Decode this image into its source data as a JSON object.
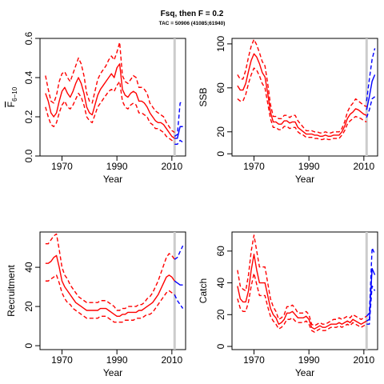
{
  "figure": {
    "title": "Fsq, then F = 0.2",
    "subtitle": "TAC = 50906 (41085;61940)"
  },
  "colors": {
    "history": "#ff0000",
    "forecast": "#0000ff",
    "marker": "#cccccc",
    "axis": "#000000"
  },
  "chart_data": [
    {
      "type": "line",
      "panel": "top-left",
      "xlabel": "Year",
      "ylabel_main": "F",
      "ylabel_sub": "6−10",
      "xlim": [
        1962,
        2015
      ],
      "ylim": [
        0,
        0.6
      ],
      "xticks": [
        1970,
        1990,
        2010
      ],
      "yticks": [
        0.0,
        0.2,
        0.4,
        0.6
      ],
      "ytick_labels": [
        "0.0",
        "0.2",
        "0.4",
        "0.6"
      ],
      "marker_year": 2011,
      "history": {
        "x": [
          1964,
          1965,
          1966,
          1967,
          1968,
          1969,
          1970,
          1971,
          1972,
          1973,
          1974,
          1975,
          1976,
          1977,
          1978,
          1979,
          1980,
          1981,
          1982,
          1983,
          1984,
          1985,
          1986,
          1987,
          1988,
          1989,
          1990,
          1991,
          1992,
          1993,
          1994,
          1995,
          1996,
          1997,
          1998,
          1999,
          2000,
          2001,
          2002,
          2003,
          2004,
          2005,
          2006,
          2007,
          2008,
          2009,
          2010,
          2011
        ],
        "mid": [
          0.32,
          0.28,
          0.22,
          0.2,
          0.22,
          0.28,
          0.33,
          0.35,
          0.32,
          0.3,
          0.33,
          0.37,
          0.4,
          0.37,
          0.32,
          0.25,
          0.22,
          0.21,
          0.26,
          0.31,
          0.34,
          0.36,
          0.38,
          0.4,
          0.42,
          0.4,
          0.45,
          0.47,
          0.34,
          0.31,
          0.3,
          0.32,
          0.33,
          0.32,
          0.28,
          0.28,
          0.27,
          0.25,
          0.22,
          0.2,
          0.18,
          0.17,
          0.17,
          0.16,
          0.14,
          0.12,
          0.1,
          0.09
        ],
        "upper": [
          0.41,
          0.34,
          0.28,
          0.27,
          0.31,
          0.38,
          0.42,
          0.43,
          0.4,
          0.38,
          0.42,
          0.46,
          0.5,
          0.47,
          0.41,
          0.32,
          0.28,
          0.27,
          0.33,
          0.39,
          0.42,
          0.44,
          0.46,
          0.49,
          0.51,
          0.49,
          0.53,
          0.58,
          0.41,
          0.38,
          0.37,
          0.39,
          0.41,
          0.4,
          0.35,
          0.35,
          0.34,
          0.32,
          0.27,
          0.25,
          0.23,
          0.22,
          0.21,
          0.2,
          0.17,
          0.15,
          0.13,
          0.12
        ],
        "lower": [
          0.25,
          0.2,
          0.16,
          0.15,
          0.17,
          0.22,
          0.26,
          0.28,
          0.25,
          0.24,
          0.26,
          0.29,
          0.32,
          0.3,
          0.26,
          0.2,
          0.18,
          0.17,
          0.21,
          0.25,
          0.27,
          0.29,
          0.31,
          0.33,
          0.34,
          0.33,
          0.36,
          0.38,
          0.28,
          0.25,
          0.24,
          0.26,
          0.27,
          0.26,
          0.22,
          0.22,
          0.21,
          0.2,
          0.17,
          0.16,
          0.14,
          0.14,
          0.13,
          0.12,
          0.1,
          0.09,
          0.08,
          0.07
        ]
      },
      "forecast": {
        "x": [
          2011,
          2012,
          2013,
          2014
        ],
        "mid": [
          0.09,
          0.09,
          0.15,
          0.15
        ],
        "upper": [
          0.1,
          0.11,
          0.27,
          0.28
        ],
        "lower": [
          0.06,
          0.06,
          0.08,
          0.07
        ]
      }
    },
    {
      "type": "line",
      "panel": "top-right",
      "xlabel": "Year",
      "ylabel_main": "SSB",
      "ylabel_sub": "",
      "xlim": [
        1962,
        2015
      ],
      "ylim": [
        -2,
        105
      ],
      "xticks": [
        1970,
        1990,
        2010
      ],
      "yticks": [
        0,
        20,
        60,
        100
      ],
      "ytick_labels": [
        "0",
        "20",
        "60",
        "100"
      ],
      "marker_year": 2011,
      "history": {
        "x": [
          1964,
          1965,
          1966,
          1967,
          1968,
          1969,
          1970,
          1971,
          1972,
          1973,
          1974,
          1975,
          1976,
          1977,
          1978,
          1979,
          1980,
          1981,
          1982,
          1983,
          1984,
          1985,
          1986,
          1987,
          1988,
          1989,
          1990,
          1991,
          1992,
          1993,
          1994,
          1995,
          1996,
          1997,
          1998,
          1999,
          2000,
          2001,
          2002,
          2003,
          2004,
          2005,
          2006,
          2007,
          2008,
          2009,
          2010,
          2011
        ],
        "mid": [
          62,
          58,
          58,
          64,
          75,
          85,
          91,
          88,
          82,
          74,
          70,
          55,
          38,
          29,
          29,
          27,
          27,
          30,
          30,
          28,
          29,
          29,
          24,
          22,
          20,
          18,
          18,
          18,
          17,
          17,
          16,
          16,
          17,
          16,
          16,
          17,
          17,
          17,
          20,
          25,
          32,
          36,
          38,
          41,
          40,
          38,
          36,
          35
        ],
        "upper": [
          72,
          68,
          68,
          76,
          88,
          98,
          104,
          99,
          92,
          84,
          80,
          64,
          45,
          34,
          34,
          32,
          32,
          35,
          35,
          33,
          35,
          35,
          30,
          27,
          24,
          21,
          21,
          21,
          20,
          20,
          19,
          19,
          20,
          19,
          19,
          20,
          20,
          20,
          23,
          29,
          38,
          43,
          46,
          50,
          48,
          46,
          44,
          43
        ],
        "lower": [
          50,
          48,
          48,
          54,
          64,
          72,
          78,
          76,
          71,
          64,
          60,
          46,
          32,
          24,
          24,
          22,
          22,
          25,
          25,
          23,
          24,
          24,
          20,
          18,
          17,
          15,
          15,
          15,
          14,
          14,
          13,
          13,
          14,
          13,
          13,
          14,
          14,
          14,
          17,
          21,
          27,
          30,
          32,
          34,
          33,
          32,
          30,
          29
        ]
      },
      "forecast": {
        "x": [
          2011,
          2012,
          2013,
          2014
        ],
        "mid": [
          40,
          52,
          66,
          72
        ],
        "upper": [
          48,
          68,
          86,
          96
        ],
        "lower": [
          33,
          40,
          50,
          52
        ]
      }
    },
    {
      "type": "line",
      "panel": "bottom-left",
      "xlabel": "Year",
      "ylabel_main": "Recruitment",
      "ylabel_sub": "",
      "xlim": [
        1962,
        2015
      ],
      "ylim": [
        -2,
        58
      ],
      "xticks": [
        1970,
        1990,
        2010
      ],
      "yticks": [
        0,
        20,
        40
      ],
      "ytick_labels": [
        "0",
        "20",
        "40"
      ],
      "marker_year": 2011,
      "history": {
        "x": [
          1964,
          1965,
          1966,
          1967,
          1968,
          1969,
          1970,
          1971,
          1972,
          1973,
          1974,
          1975,
          1976,
          1977,
          1978,
          1979,
          1980,
          1981,
          1982,
          1983,
          1984,
          1985,
          1986,
          1987,
          1988,
          1989,
          1990,
          1991,
          1992,
          1993,
          1994,
          1995,
          1996,
          1997,
          1998,
          1999,
          2000,
          2001,
          2002,
          2003,
          2004,
          2005,
          2006,
          2007,
          2008,
          2009,
          2010,
          2011
        ],
        "mid": [
          42,
          42,
          43,
          45,
          46,
          40,
          33,
          30,
          28,
          26,
          24,
          22,
          21,
          20,
          19,
          18,
          18,
          18,
          18,
          18,
          19,
          19,
          19,
          18,
          17,
          16,
          15,
          15,
          16,
          16,
          17,
          17,
          17,
          17,
          18,
          18,
          19,
          20,
          21,
          22,
          24,
          26,
          29,
          32,
          35,
          36,
          35,
          33
        ],
        "upper": [
          52,
          52,
          54,
          56,
          57,
          49,
          40,
          36,
          34,
          31,
          29,
          27,
          25,
          24,
          23,
          22,
          22,
          22,
          22,
          22,
          23,
          23,
          23,
          22,
          21,
          20,
          18,
          18,
          19,
          19,
          20,
          20,
          20,
          20,
          21,
          21,
          22,
          24,
          25,
          27,
          30,
          33,
          37,
          41,
          45,
          47,
          46,
          44
        ],
        "lower": [
          33,
          33,
          34,
          35,
          36,
          32,
          27,
          24,
          22,
          21,
          19,
          18,
          17,
          16,
          15,
          14,
          14,
          14,
          14,
          14,
          15,
          15,
          15,
          14,
          13,
          12,
          12,
          12,
          12,
          13,
          13,
          13,
          13,
          14,
          14,
          14,
          15,
          16,
          16,
          17,
          19,
          21,
          23,
          25,
          27,
          28,
          27,
          26
        ]
      },
      "forecast": {
        "x": [
          2011,
          2012,
          2013,
          2014
        ],
        "mid": [
          33,
          32,
          31,
          31
        ],
        "upper": [
          44,
          45,
          48,
          51
        ],
        "lower": [
          26,
          23,
          21,
          19
        ]
      }
    },
    {
      "type": "line",
      "panel": "bottom-right",
      "xlabel": "Year",
      "ylabel_main": "Catch",
      "ylabel_sub": "",
      "xlim": [
        1962,
        2015
      ],
      "ylim": [
        -2,
        72
      ],
      "xticks": [
        1970,
        1990,
        2010
      ],
      "yticks": [
        0,
        20,
        40,
        60
      ],
      "ytick_labels": [
        "0",
        "20",
        "40",
        "60"
      ],
      "marker_year": 2011,
      "history": {
        "x": [
          1964,
          1965,
          1966,
          1967,
          1968,
          1969,
          1970,
          1971,
          1972,
          1973,
          1974,
          1975,
          1976,
          1977,
          1978,
          1979,
          1980,
          1981,
          1982,
          1983,
          1984,
          1985,
          1986,
          1987,
          1988,
          1989,
          1990,
          1991,
          1992,
          1993,
          1994,
          1995,
          1996,
          1997,
          1998,
          1999,
          2000,
          2001,
          2002,
          2003,
          2004,
          2005,
          2006,
          2007,
          2008,
          2009,
          2010,
          2011
        ],
        "mid": [
          38,
          30,
          28,
          28,
          35,
          48,
          58,
          48,
          40,
          40,
          40,
          32,
          24,
          20,
          18,
          14,
          15,
          17,
          21,
          21,
          22,
          20,
          18,
          18,
          18,
          19,
          17,
          12,
          11,
          12,
          13,
          12,
          12,
          13,
          14,
          14,
          14,
          15,
          14,
          15,
          16,
          15,
          17,
          16,
          15,
          14,
          15,
          16
        ],
        "upper": [
          48,
          38,
          36,
          35,
          45,
          60,
          70,
          60,
          50,
          50,
          50,
          40,
          30,
          25,
          22,
          17,
          18,
          20,
          25,
          25,
          26,
          24,
          21,
          21,
          21,
          22,
          20,
          14,
          13,
          14,
          15,
          14,
          14,
          15,
          16,
          17,
          17,
          18,
          17,
          18,
          19,
          18,
          20,
          19,
          18,
          17,
          18,
          19
        ],
        "lower": [
          30,
          24,
          22,
          22,
          28,
          38,
          46,
          39,
          32,
          32,
          32,
          25,
          19,
          16,
          14,
          11,
          12,
          14,
          17,
          17,
          18,
          16,
          15,
          15,
          15,
          16,
          14,
          10,
          9,
          10,
          11,
          10,
          10,
          11,
          12,
          12,
          12,
          13,
          12,
          13,
          14,
          13,
          15,
          14,
          13,
          12,
          13,
          14
        ]
      },
      "forecast": {
        "x": [
          2011,
          2012,
          2013,
          2014
        ],
        "mid": [
          16,
          17,
          49,
          45
        ],
        "upper": [
          19,
          21,
          62,
          58
        ],
        "lower": [
          14,
          14,
          38,
          35
        ]
      }
    }
  ]
}
